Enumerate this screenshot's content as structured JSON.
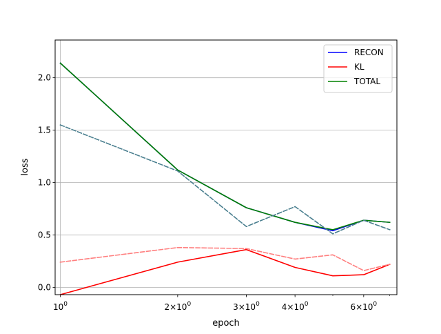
{
  "chart_data": {
    "type": "line",
    "title": "",
    "xlabel": "epoch",
    "ylabel": "loss",
    "xscale": "log",
    "xlim": [
      0.97,
      7.3
    ],
    "ylim": [
      -0.07,
      2.36
    ],
    "grid": true,
    "legend_position": "top-right",
    "x_ticks": [
      {
        "value": 1,
        "base": "10",
        "exp": "0"
      },
      {
        "value": 2,
        "base": "2×10",
        "exp": "0"
      },
      {
        "value": 3,
        "base": "3×10",
        "exp": "0"
      },
      {
        "value": 4,
        "base": "4×10",
        "exp": "0"
      },
      {
        "value": 6,
        "base": "6×10",
        "exp": "0"
      }
    ],
    "y_ticks": [
      "0.0",
      "0.5",
      "1.0",
      "1.5",
      "2.0"
    ],
    "y_tick_values": [
      0.0,
      0.5,
      1.0,
      1.5,
      2.0
    ],
    "x": [
      1,
      2,
      3,
      4,
      5,
      6,
      7
    ],
    "series": [
      {
        "name": "RECON",
        "color": "#0000ff",
        "style": "solid",
        "values": [
          2.14,
          1.12,
          0.76,
          0.62,
          0.54,
          0.64,
          0.62
        ]
      },
      {
        "name": "KL",
        "color": "#ff0000",
        "style": "solid",
        "values": [
          -0.07,
          0.24,
          0.36,
          0.19,
          0.11,
          0.12,
          0.22
        ]
      },
      {
        "name": "TOTAL",
        "color": "#008000",
        "style": "solid",
        "values": [
          2.14,
          1.12,
          0.76,
          0.62,
          0.55,
          0.64,
          0.62
        ]
      },
      {
        "name": "",
        "color": "#4a7f8f",
        "style": "dashed",
        "values": [
          1.55,
          1.11,
          0.58,
          0.77,
          0.51,
          0.64,
          0.55
        ]
      },
      {
        "name": "",
        "color": "#ff7f7f",
        "style": "dashed",
        "values": [
          0.24,
          0.38,
          0.37,
          0.27,
          0.31,
          0.16,
          0.22
        ]
      }
    ]
  }
}
